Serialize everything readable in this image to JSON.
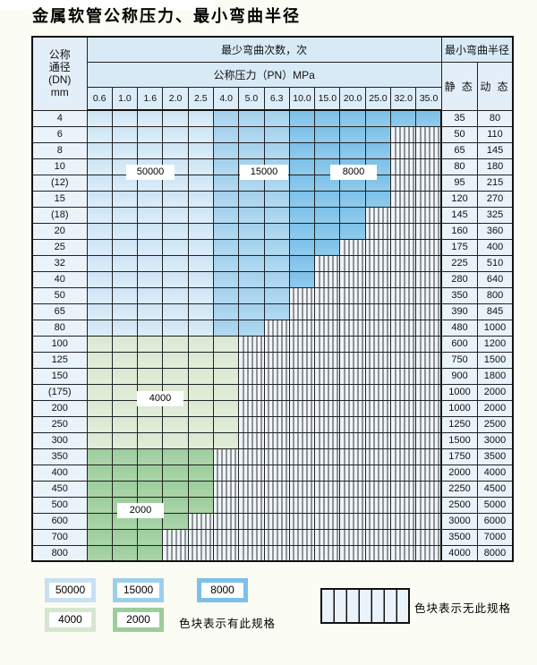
{
  "title": "金属软管公称压力、最小弯曲半径",
  "table": {
    "corner": "公称\n通径\n(DN)\nmm",
    "bend_cycles_header": "最少弯曲次数，次",
    "pressure_header": "公称压力（PN）MPa",
    "radius_header": "最小弯曲半径",
    "static_label": "静 态",
    "dynamic_label": "动 态",
    "pressures": [
      "0.6",
      "1.0",
      "1.6",
      "2.0",
      "2.5",
      "4.0",
      "5.0",
      "6.3",
      "10.0",
      "15.0",
      "20.0",
      "25.0",
      "32.0",
      "35.0"
    ],
    "rows": [
      {
        "dn": "4",
        "static": "35",
        "dynamic": "80",
        "zones": {
          "b1": 5,
          "b2": 3,
          "b3": 6,
          "g1": 0,
          "g2": 0,
          "hatch": 0
        }
      },
      {
        "dn": "6",
        "static": "50",
        "dynamic": "110",
        "zones": {
          "b1": 5,
          "b2": 3,
          "b3": 4,
          "g1": 0,
          "g2": 0,
          "hatch": 2
        }
      },
      {
        "dn": "8",
        "static": "65",
        "dynamic": "145",
        "zones": {
          "b1": 5,
          "b2": 3,
          "b3": 4,
          "g1": 0,
          "g2": 0,
          "hatch": 2
        }
      },
      {
        "dn": "10",
        "static": "80",
        "dynamic": "180",
        "zones": {
          "b1": 5,
          "b2": 3,
          "b3": 4,
          "g1": 0,
          "g2": 0,
          "hatch": 2
        }
      },
      {
        "dn": "(12)",
        "static": "95",
        "dynamic": "215",
        "zones": {
          "b1": 5,
          "b2": 3,
          "b3": 4,
          "g1": 0,
          "g2": 0,
          "hatch": 2
        }
      },
      {
        "dn": "15",
        "static": "120",
        "dynamic": "270",
        "zones": {
          "b1": 5,
          "b2": 3,
          "b3": 4,
          "g1": 0,
          "g2": 0,
          "hatch": 2
        }
      },
      {
        "dn": "(18)",
        "static": "145",
        "dynamic": "325",
        "zones": {
          "b1": 5,
          "b2": 3,
          "b3": 3,
          "g1": 0,
          "g2": 0,
          "hatch": 3
        }
      },
      {
        "dn": "20",
        "static": "160",
        "dynamic": "360",
        "zones": {
          "b1": 5,
          "b2": 3,
          "b3": 3,
          "g1": 0,
          "g2": 0,
          "hatch": 3
        }
      },
      {
        "dn": "25",
        "static": "175",
        "dynamic": "400",
        "zones": {
          "b1": 5,
          "b2": 3,
          "b3": 2,
          "g1": 0,
          "g2": 0,
          "hatch": 4
        }
      },
      {
        "dn": "32",
        "static": "225",
        "dynamic": "510",
        "zones": {
          "b1": 5,
          "b2": 3,
          "b3": 1,
          "g1": 0,
          "g2": 0,
          "hatch": 5
        }
      },
      {
        "dn": "40",
        "static": "280",
        "dynamic": "640",
        "zones": {
          "b1": 5,
          "b2": 3,
          "b3": 1,
          "g1": 0,
          "g2": 0,
          "hatch": 5
        }
      },
      {
        "dn": "50",
        "static": "350",
        "dynamic": "800",
        "zones": {
          "b1": 5,
          "b2": 3,
          "b3": 0,
          "g1": 0,
          "g2": 0,
          "hatch": 6
        }
      },
      {
        "dn": "65",
        "static": "390",
        "dynamic": "845",
        "zones": {
          "b1": 5,
          "b2": 3,
          "b3": 0,
          "g1": 0,
          "g2": 0,
          "hatch": 6
        }
      },
      {
        "dn": "80",
        "static": "480",
        "dynamic": "1000",
        "zones": {
          "b1": 5,
          "b2": 2,
          "b3": 0,
          "g1": 0,
          "g2": 0,
          "hatch": 7
        }
      },
      {
        "dn": "100",
        "static": "600",
        "dynamic": "1200",
        "zones": {
          "b1": 0,
          "b2": 0,
          "b3": 0,
          "g1": 6,
          "g2": 0,
          "hatch": 8
        }
      },
      {
        "dn": "125",
        "static": "750",
        "dynamic": "1500",
        "zones": {
          "b1": 0,
          "b2": 0,
          "b3": 0,
          "g1": 6,
          "g2": 0,
          "hatch": 8
        }
      },
      {
        "dn": "150",
        "static": "900",
        "dynamic": "1800",
        "zones": {
          "b1": 0,
          "b2": 0,
          "b3": 0,
          "g1": 6,
          "g2": 0,
          "hatch": 8
        }
      },
      {
        "dn": "(175)",
        "static": "1000",
        "dynamic": "2000",
        "zones": {
          "b1": 0,
          "b2": 0,
          "b3": 0,
          "g1": 6,
          "g2": 0,
          "hatch": 8
        }
      },
      {
        "dn": "200",
        "static": "1000",
        "dynamic": "2000",
        "zones": {
          "b1": 0,
          "b2": 0,
          "b3": 0,
          "g1": 6,
          "g2": 0,
          "hatch": 8
        }
      },
      {
        "dn": "250",
        "static": "1250",
        "dynamic": "2500",
        "zones": {
          "b1": 0,
          "b2": 0,
          "b3": 0,
          "g1": 6,
          "g2": 0,
          "hatch": 8
        }
      },
      {
        "dn": "300",
        "static": "1500",
        "dynamic": "3000",
        "zones": {
          "b1": 0,
          "b2": 0,
          "b3": 0,
          "g1": 6,
          "g2": 0,
          "hatch": 8
        }
      },
      {
        "dn": "350",
        "static": "1750",
        "dynamic": "3500",
        "zones": {
          "b1": 0,
          "b2": 0,
          "b3": 0,
          "g1": 0,
          "g2": 5,
          "hatch": 9
        }
      },
      {
        "dn": "400",
        "static": "2000",
        "dynamic": "4000",
        "zones": {
          "b1": 0,
          "b2": 0,
          "b3": 0,
          "g1": 0,
          "g2": 5,
          "hatch": 9
        }
      },
      {
        "dn": "450",
        "static": "2250",
        "dynamic": "4500",
        "zones": {
          "b1": 0,
          "b2": 0,
          "b3": 0,
          "g1": 0,
          "g2": 5,
          "hatch": 9
        }
      },
      {
        "dn": "500",
        "static": "2500",
        "dynamic": "5000",
        "zones": {
          "b1": 0,
          "b2": 0,
          "b3": 0,
          "g1": 0,
          "g2": 5,
          "hatch": 9
        }
      },
      {
        "dn": "600",
        "static": "3000",
        "dynamic": "6000",
        "zones": {
          "b1": 0,
          "b2": 0,
          "b3": 0,
          "g1": 0,
          "g2": 4,
          "hatch": 10
        }
      },
      {
        "dn": "700",
        "static": "3500",
        "dynamic": "7000",
        "zones": {
          "b1": 0,
          "b2": 0,
          "b3": 0,
          "g1": 0,
          "g2": 3,
          "hatch": 11
        }
      },
      {
        "dn": "800",
        "static": "4000",
        "dynamic": "8000",
        "zones": {
          "b1": 0,
          "b2": 0,
          "b3": 0,
          "g1": 0,
          "g2": 3,
          "hatch": 11
        }
      }
    ]
  },
  "overlays": [
    {
      "label": "50000"
    },
    {
      "label": "15000"
    },
    {
      "label": "8000"
    },
    {
      "label": "4000"
    },
    {
      "label": "2000"
    }
  ],
  "legend": {
    "items": [
      {
        "label": "50000"
      },
      {
        "label": "15000"
      },
      {
        "label": "8000"
      },
      {
        "label": "4000"
      },
      {
        "label": "2000"
      }
    ],
    "has_spec_text": "色块表示有此规格",
    "no_spec_text": "色块表示无此规格"
  },
  "colors": {
    "cycles_50000": "#cde3f4",
    "cycles_15000": "#a2d0ed",
    "cycles_8000": "#7cc0e8",
    "cycles_4000": "#d8e8d2",
    "cycles_2000": "#9ccd9d"
  }
}
